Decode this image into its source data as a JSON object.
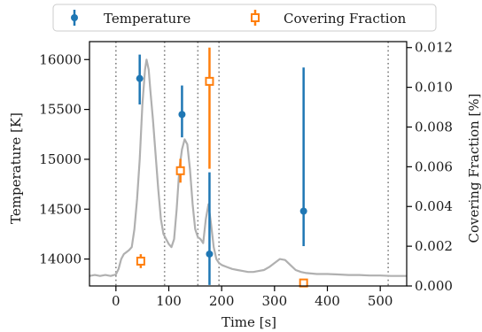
{
  "chart_data": {
    "type": "scatter",
    "xlabel": "Time [s]",
    "ylabel_left": "Temperature [K]",
    "ylabel_right": "Covering Fraction [%]",
    "xlim": [
      -50,
      550
    ],
    "ylim_left": [
      13730,
      16180
    ],
    "ylim_right": [
      0,
      0.0123
    ],
    "x_ticks": [
      0,
      100,
      200,
      300,
      400,
      500
    ],
    "y_left_ticks": [
      14000,
      14500,
      15000,
      15500,
      16000
    ],
    "y_right_ticks": [
      0.0,
      0.002,
      0.004,
      0.006,
      0.008,
      0.01,
      0.012
    ],
    "y_right_tick_labels": [
      "0.000",
      "0.002",
      "0.004",
      "0.006",
      "0.008",
      "0.010",
      "0.012"
    ],
    "legend_position": "top-center",
    "vertical_lines": [
      0,
      92,
      155,
      195,
      515
    ],
    "series": [
      {
        "name": "Temperature",
        "axis": "left",
        "color": "#1f77b4",
        "marker": "filled-circle",
        "points": [
          {
            "x": 45,
            "y": 15810,
            "err_low": 15550,
            "err_high": 16050
          },
          {
            "x": 125,
            "y": 15450,
            "err_low": 15220,
            "err_high": 15740
          },
          {
            "x": 177,
            "y": 14050,
            "err_low": 13740,
            "err_high": 14870
          },
          {
            "x": 355,
            "y": 14480,
            "err_low": 14130,
            "err_high": 15920
          }
        ]
      },
      {
        "name": "Covering Fraction",
        "axis": "right",
        "color": "#ff7f0e",
        "marker": "open-square",
        "points": [
          {
            "x": 47,
            "y": 0.00125,
            "err_low": 0.0009,
            "err_high": 0.0016
          },
          {
            "x": 122,
            "y": 0.0058,
            "err_low": 0.0052,
            "err_high": 0.0064
          },
          {
            "x": 177,
            "y": 0.0103,
            "err_low": 0.0059,
            "err_high": 0.012
          },
          {
            "x": 355,
            "y": 0.00015,
            "err_low": 0.0,
            "err_high": 0.0003
          }
        ]
      }
    ],
    "background_curve": {
      "color": "#b0b0b0",
      "axis": "left",
      "points": [
        [
          -50,
          13830
        ],
        [
          -40,
          13840
        ],
        [
          -30,
          13830
        ],
        [
          -20,
          13840
        ],
        [
          -10,
          13830
        ],
        [
          0,
          13845
        ],
        [
          5,
          13900
        ],
        [
          10,
          14000
        ],
        [
          15,
          14050
        ],
        [
          20,
          14070
        ],
        [
          25,
          14090
        ],
        [
          30,
          14120
        ],
        [
          35,
          14300
        ],
        [
          40,
          14600
        ],
        [
          45,
          15000
        ],
        [
          50,
          15550
        ],
        [
          55,
          15900
        ],
        [
          58,
          16000
        ],
        [
          62,
          15900
        ],
        [
          65,
          15700
        ],
        [
          70,
          15400
        ],
        [
          75,
          15050
        ],
        [
          80,
          14700
        ],
        [
          85,
          14400
        ],
        [
          90,
          14250
        ],
        [
          95,
          14200
        ],
        [
          100,
          14150
        ],
        [
          105,
          14120
        ],
        [
          110,
          14200
        ],
        [
          115,
          14500
        ],
        [
          120,
          14900
        ],
        [
          125,
          15100
        ],
        [
          130,
          15200
        ],
        [
          135,
          15150
        ],
        [
          140,
          14900
        ],
        [
          145,
          14550
        ],
        [
          150,
          14300
        ],
        [
          155,
          14220
        ],
        [
          160,
          14200
        ],
        [
          165,
          14160
        ],
        [
          170,
          14400
        ],
        [
          175,
          14550
        ],
        [
          180,
          14350
        ],
        [
          185,
          14120
        ],
        [
          190,
          14000
        ],
        [
          195,
          13960
        ],
        [
          200,
          13940
        ],
        [
          210,
          13920
        ],
        [
          220,
          13900
        ],
        [
          230,
          13890
        ],
        [
          240,
          13880
        ],
        [
          250,
          13870
        ],
        [
          260,
          13870
        ],
        [
          270,
          13880
        ],
        [
          280,
          13890
        ],
        [
          290,
          13920
        ],
        [
          300,
          13960
        ],
        [
          310,
          14000
        ],
        [
          320,
          13990
        ],
        [
          330,
          13940
        ],
        [
          340,
          13890
        ],
        [
          350,
          13870
        ],
        [
          360,
          13860
        ],
        [
          380,
          13850
        ],
        [
          400,
          13850
        ],
        [
          420,
          13845
        ],
        [
          440,
          13840
        ],
        [
          460,
          13840
        ],
        [
          480,
          13835
        ],
        [
          500,
          13835
        ],
        [
          520,
          13830
        ],
        [
          550,
          13830
        ]
      ]
    }
  }
}
